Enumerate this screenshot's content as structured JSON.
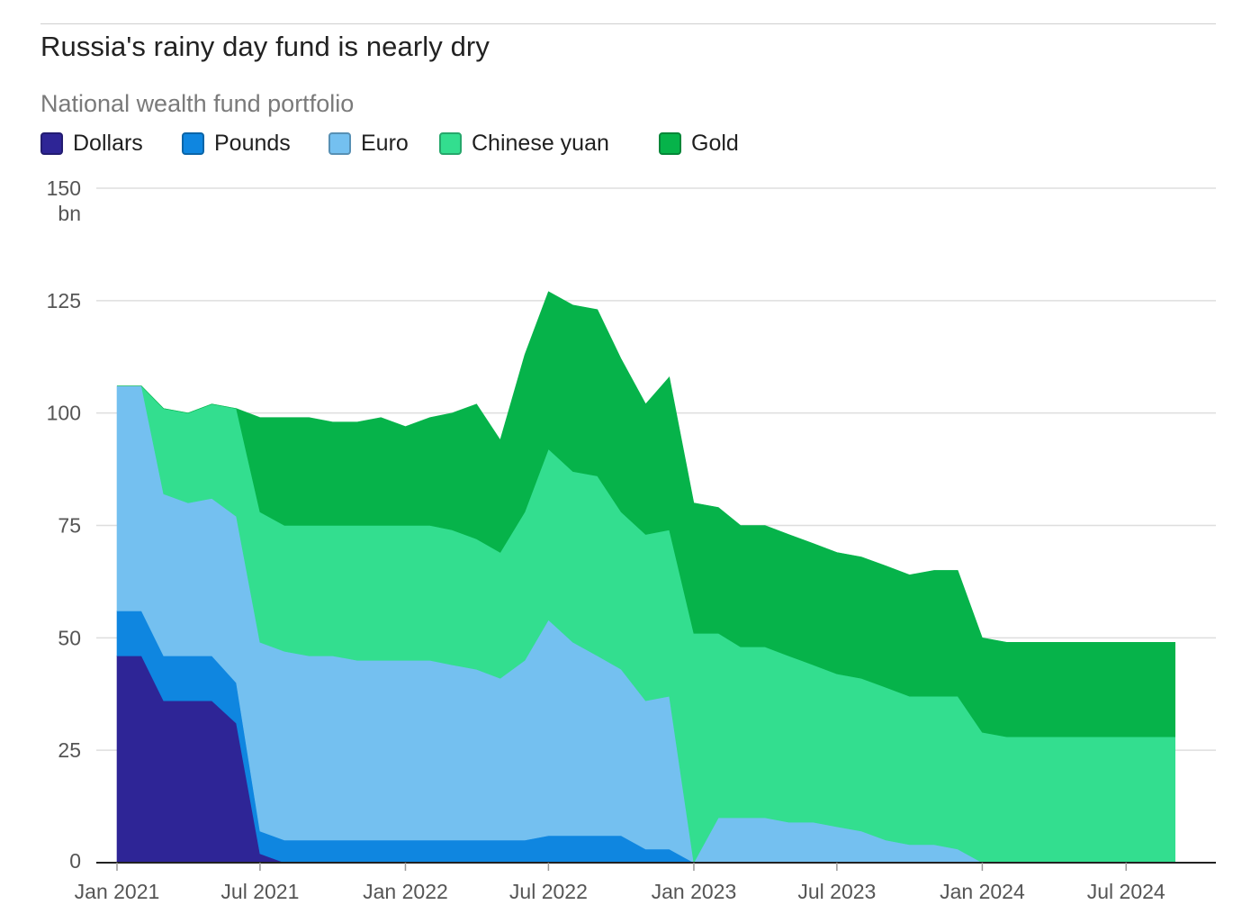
{
  "chart_data": {
    "type": "area",
    "stacked": true,
    "title": "Russia's rainy day fund is nearly dry",
    "subtitle": "National wealth fund portfolio",
    "ylabel_unit": "bn",
    "ylim": [
      0,
      150
    ],
    "yticks": [
      0,
      25,
      50,
      75,
      100,
      125,
      150
    ],
    "xlim": [
      "2021-01-01",
      "2024-10-01"
    ],
    "xticks": [
      {
        "date": "2021-01-01",
        "label": "Jan 2021"
      },
      {
        "date": "2021-07-01",
        "label": "Jul 2021"
      },
      {
        "date": "2022-01-01",
        "label": "Jan 2022"
      },
      {
        "date": "2022-07-01",
        "label": "Jul 2022"
      },
      {
        "date": "2023-01-01",
        "label": "Jan 2023"
      },
      {
        "date": "2023-07-01",
        "label": "Jul 2023"
      },
      {
        "date": "2024-01-01",
        "label": "Jan 2024"
      },
      {
        "date": "2024-07-01",
        "label": "Jul 2024"
      }
    ],
    "grid": true,
    "legend_position": "top-left",
    "x": [
      "2021-01-01",
      "2021-02-01",
      "2021-03-01",
      "2021-04-01",
      "2021-05-01",
      "2021-06-01",
      "2021-07-01",
      "2021-08-01",
      "2021-09-01",
      "2021-10-01",
      "2021-11-01",
      "2021-12-01",
      "2022-01-01",
      "2022-02-01",
      "2022-03-01",
      "2022-04-01",
      "2022-05-01",
      "2022-06-01",
      "2022-07-01",
      "2022-08-01",
      "2022-09-01",
      "2022-10-01",
      "2022-11-01",
      "2022-12-01",
      "2023-01-01",
      "2023-02-01",
      "2023-03-01",
      "2023-04-01",
      "2023-05-01",
      "2023-06-01",
      "2023-07-01",
      "2023-08-01",
      "2023-09-01",
      "2023-10-01",
      "2023-11-01",
      "2023-12-01",
      "2024-01-01",
      "2024-02-01",
      "2024-03-01",
      "2024-04-01",
      "2024-05-01",
      "2024-06-01",
      "2024-07-01",
      "2024-08-01",
      "2024-09-01"
    ],
    "series": [
      {
        "name": "Dollars",
        "color": "#2e2596",
        "values": [
          46,
          46,
          36,
          36,
          36,
          31,
          2,
          0,
          0,
          0,
          0,
          0,
          0,
          0,
          0,
          0,
          0,
          0,
          0,
          0,
          0,
          0,
          0,
          0,
          0,
          0,
          0,
          0,
          0,
          0,
          0,
          0,
          0,
          0,
          0,
          0,
          0,
          0,
          0,
          0,
          0,
          0,
          0,
          0,
          0
        ]
      },
      {
        "name": "Pounds",
        "color": "#0f86e0",
        "values": [
          10,
          10,
          10,
          10,
          10,
          9,
          5,
          5,
          5,
          5,
          5,
          5,
          5,
          5,
          5,
          5,
          5,
          5,
          6,
          6,
          6,
          6,
          3,
          3,
          0,
          0,
          0,
          0,
          0,
          0,
          0,
          0,
          0,
          0,
          0,
          0,
          0,
          0,
          0,
          0,
          0,
          0,
          0,
          0,
          0
        ]
      },
      {
        "name": "Euro",
        "color": "#74c0f0",
        "values": [
          50,
          50,
          36,
          34,
          35,
          37,
          42,
          42,
          41,
          41,
          40,
          40,
          40,
          40,
          39,
          38,
          36,
          40,
          48,
          43,
          40,
          37,
          33,
          34,
          0,
          10,
          10,
          10,
          9,
          9,
          8,
          7,
          5,
          4,
          4,
          3,
          0,
          0,
          0,
          0,
          0,
          0,
          0,
          0,
          0
        ]
      },
      {
        "name": "Chinese yuan",
        "color": "#33de8f",
        "values": [
          0,
          0,
          19,
          20,
          21,
          24,
          29,
          28,
          29,
          29,
          30,
          30,
          30,
          30,
          30,
          29,
          28,
          33,
          38,
          38,
          40,
          35,
          37,
          37,
          51,
          41,
          38,
          38,
          37,
          35,
          34,
          34,
          34,
          33,
          33,
          34,
          29,
          28,
          28,
          28,
          28,
          28,
          28,
          28,
          28
        ]
      },
      {
        "name": "Gold",
        "color": "#06b34a",
        "values": [
          0,
          0,
          0,
          0,
          0,
          0,
          21,
          24,
          24,
          23,
          23,
          24,
          22,
          24,
          26,
          30,
          25,
          35,
          35,
          37,
          37,
          34,
          29,
          34,
          29,
          28,
          27,
          27,
          27,
          27,
          27,
          27,
          27,
          27,
          28,
          28,
          21,
          21,
          21,
          21,
          21,
          21,
          21,
          21,
          21
        ]
      }
    ]
  }
}
